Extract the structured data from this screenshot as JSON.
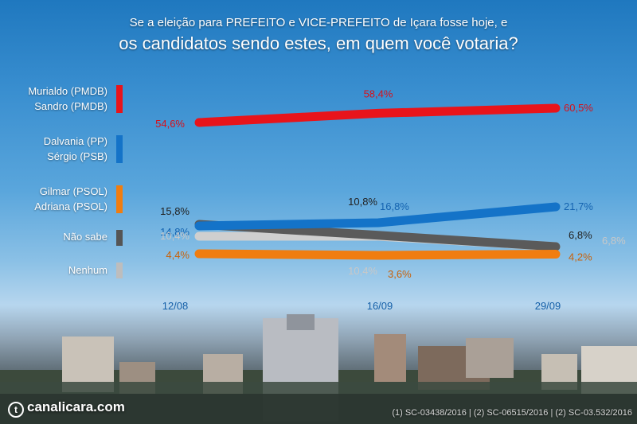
{
  "title_line1": "Se a eleição para PREFEITO e VICE-PREFEITO de Içara fosse hoje, e",
  "title_line2": "os candidatos sendo estes, em quem você votaria?",
  "footer": {
    "brand": "canalicara.com",
    "sources": "(1) SC-03438/2016 | (2) SC-06515/2016 | (2) SC-03.532/2016"
  },
  "legend": [
    {
      "label1": "Murialdo (PMDB)",
      "label2": "Sandro (PMDB)",
      "color": "#e8141b"
    },
    {
      "label1": "Dalvania (PP)",
      "label2": "Sérgio (PSB)",
      "color": "#1473c8"
    },
    {
      "label1": "Gilmar (PSOL)",
      "label2": "Adriana (PSOL)",
      "color": "#f07d10"
    },
    {
      "label1": "Não sabe",
      "label2": "",
      "color": "#555555"
    },
    {
      "label1": "Nenhum",
      "label2": "",
      "color": "#bdbdbd"
    }
  ],
  "chart_data": {
    "type": "line",
    "x": [
      "12/08",
      "16/09",
      "29/09"
    ],
    "series": [
      {
        "name": "Murialdo (PMDB) / Sandro (PMDB)",
        "color": "#e8141b",
        "labelColor": "#d8101a",
        "values": [
          54.6,
          58.4,
          60.5
        ],
        "labels": [
          "54,6%",
          "58,4%",
          "60,5%"
        ]
      },
      {
        "name": "Dalvania (PP) / Sérgio (PSB)",
        "color": "#1473c8",
        "labelColor": "#1463b0",
        "values": [
          14.8,
          16.8,
          21.7
        ],
        "labels": [
          "14,8%",
          "16,8%",
          "21,7%"
        ]
      },
      {
        "name": "Não sabe",
        "color": "#5a5a5a",
        "labelColor": "#222222",
        "values": [
          15.8,
          10.8,
          6.8
        ],
        "labels": [
          "15,8%",
          "10,8%",
          "6,8%"
        ]
      },
      {
        "name": "Nenhum",
        "color": "#cfcfcf",
        "labelColor": "#c8c8c8",
        "values": [
          10.4,
          10.4,
          6.8
        ],
        "labels": [
          "10,4%",
          "10,4%",
          "6,8%"
        ]
      },
      {
        "name": "Gilmar (PSOL) / Adriana (PSOL)",
        "color": "#f07d10",
        "labelColor": "#c8620a",
        "values": [
          4.4,
          3.6,
          4.2
        ],
        "labels": [
          "4,4%",
          "3,6%",
          "4,2%"
        ]
      }
    ],
    "grid": false
  }
}
